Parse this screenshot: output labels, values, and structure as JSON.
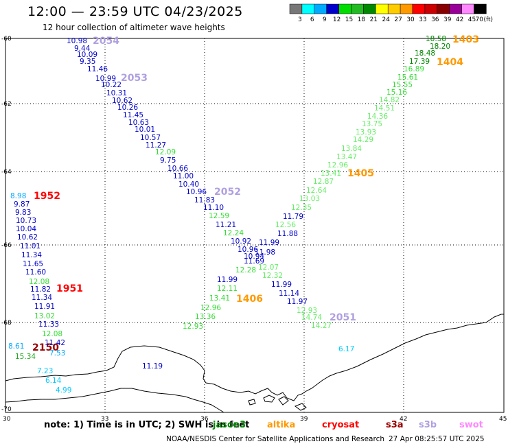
{
  "header": {
    "title": "12:00 — 23:59 UTC 04/23/2025",
    "subtitle": "12 hour collection of altimeter wave heights"
  },
  "legend": {
    "unit": "(ft)",
    "bins": [
      {
        "label": "3",
        "color": "#777777"
      },
      {
        "label": "6",
        "color": "#00ffff"
      },
      {
        "label": "9",
        "color": "#00aaff"
      },
      {
        "label": "12",
        "color": "#0000cc"
      },
      {
        "label": "15",
        "color": "#00dd00"
      },
      {
        "label": "18",
        "color": "#22bb22"
      },
      {
        "label": "21",
        "color": "#008800"
      },
      {
        "label": "24",
        "color": "#ffff00"
      },
      {
        "label": "27",
        "color": "#ffcc00"
      },
      {
        "label": "30",
        "color": "#ff9900"
      },
      {
        "label": "33",
        "color": "#ff0000"
      },
      {
        "label": "36",
        "color": "#cc0000"
      },
      {
        "label": "39",
        "color": "#880000"
      },
      {
        "label": "42",
        "color": "#990099"
      },
      {
        "label": "45",
        "color": "#ff88ff"
      },
      {
        "label": "70",
        "color": "#000000"
      }
    ]
  },
  "map": {
    "lat_labels": [
      "-60",
      "-62",
      "-64",
      "-66",
      "-68",
      "-70"
    ],
    "lon_labels": [
      "30",
      "33",
      "36",
      "39",
      "42",
      "45"
    ],
    "lat_range": [
      -70,
      -60
    ],
    "lon_range": [
      30,
      45
    ]
  },
  "passes": [
    {
      "label": "2054",
      "satellite": "s3b",
      "color": "#b0a0e0"
    },
    {
      "label": "2053",
      "satellite": "s3b",
      "color": "#b0a0e0"
    },
    {
      "label": "2052",
      "satellite": "s3b",
      "color": "#b0a0e0"
    },
    {
      "label": "2051",
      "satellite": "s3b",
      "color": "#b0a0e0"
    },
    {
      "label": "1403",
      "satellite": "altika",
      "color": "#ff9900"
    },
    {
      "label": "1404",
      "satellite": "altika",
      "color": "#ff9900"
    },
    {
      "label": "1405",
      "satellite": "altika",
      "color": "#ff9900"
    },
    {
      "label": "1406",
      "satellite": "altika",
      "color": "#ff9900"
    },
    {
      "label": "1952",
      "satellite": "cryosat",
      "color": "#ff0000"
    },
    {
      "label": "1951",
      "satellite": "cryosat",
      "color": "#ff0000"
    },
    {
      "label": "2150",
      "satellite": "s3a",
      "color": "#990000"
    }
  ],
  "observations": [
    {
      "value": "10.98",
      "color": "#0000cc"
    },
    {
      "value": "9.44",
      "color": "#0000cc"
    },
    {
      "value": "10.09",
      "color": "#0000cc"
    },
    {
      "value": "9.35",
      "color": "#0000cc"
    },
    {
      "value": "11.46",
      "color": "#0000cc"
    },
    {
      "value": "10.99",
      "color": "#0000cc"
    },
    {
      "value": "10.22",
      "color": "#0000cc"
    },
    {
      "value": "10.31",
      "color": "#0000cc"
    },
    {
      "value": "10.62",
      "color": "#0000cc"
    },
    {
      "value": "10.26",
      "color": "#0000cc"
    },
    {
      "value": "11.45",
      "color": "#0000cc"
    },
    {
      "value": "10.63",
      "color": "#0000cc"
    },
    {
      "value": "10.01",
      "color": "#0000cc"
    },
    {
      "value": "10.57",
      "color": "#0000cc"
    },
    {
      "value": "11.27",
      "color": "#0000cc"
    },
    {
      "value": "12.09",
      "color": "#33dd33"
    },
    {
      "value": "9.75",
      "color": "#0000cc"
    },
    {
      "value": "10.66",
      "color": "#0000cc"
    },
    {
      "value": "11.00",
      "color": "#0000cc"
    },
    {
      "value": "10.40",
      "color": "#0000cc"
    },
    {
      "value": "10.96",
      "color": "#0000cc"
    },
    {
      "value": "11.83",
      "color": "#0000cc"
    },
    {
      "value": "11.10",
      "color": "#0000cc"
    },
    {
      "value": "12.59",
      "color": "#33dd33"
    },
    {
      "value": "11.21",
      "color": "#0000cc"
    },
    {
      "value": "12.24",
      "color": "#33dd33"
    },
    {
      "value": "10.92",
      "color": "#0000cc"
    },
    {
      "value": "10.96",
      "color": "#0000cc"
    },
    {
      "value": "10.94",
      "color": "#0000cc"
    },
    {
      "value": "11.69",
      "color": "#0000cc"
    },
    {
      "value": "12.28",
      "color": "#33dd33"
    },
    {
      "value": "11.99",
      "color": "#0000cc"
    },
    {
      "value": "12.11",
      "color": "#33dd33"
    },
    {
      "value": "13.41",
      "color": "#33dd33"
    },
    {
      "value": "12.96",
      "color": "#33dd33"
    },
    {
      "value": "13.36",
      "color": "#33dd33"
    },
    {
      "value": "12.93",
      "color": "#33dd33"
    },
    {
      "value": "18.58",
      "color": "#008800"
    },
    {
      "value": "18.20",
      "color": "#008800"
    },
    {
      "value": "18.48",
      "color": "#008800"
    },
    {
      "value": "17.39",
      "color": "#008800"
    },
    {
      "value": "16.89",
      "color": "#33dd33"
    },
    {
      "value": "15.61",
      "color": "#33dd33"
    },
    {
      "value": "15.55",
      "color": "#33dd33"
    },
    {
      "value": "15.16",
      "color": "#33dd33"
    },
    {
      "value": "14.82",
      "color": "#66ee66"
    },
    {
      "value": "14.51",
      "color": "#66ee66"
    },
    {
      "value": "14.36",
      "color": "#66ee66"
    },
    {
      "value": "13.75",
      "color": "#66ee66"
    },
    {
      "value": "13.93",
      "color": "#66ee66"
    },
    {
      "value": "14.29",
      "color": "#66ee66"
    },
    {
      "value": "13.84",
      "color": "#66ee66"
    },
    {
      "value": "13.47",
      "color": "#66ee66"
    },
    {
      "value": "12.96",
      "color": "#66ee66"
    },
    {
      "value": "13.41",
      "color": "#66ee66"
    },
    {
      "value": "12.87",
      "color": "#66ee66"
    },
    {
      "value": "12.64",
      "color": "#66ee66"
    },
    {
      "value": "13.03",
      "color": "#66ee66"
    },
    {
      "value": "12.35",
      "color": "#66ee66"
    },
    {
      "value": "11.79",
      "color": "#0000cc"
    },
    {
      "value": "12.56",
      "color": "#66ee66"
    },
    {
      "value": "11.88",
      "color": "#0000cc"
    },
    {
      "value": "11.99",
      "color": "#0000cc"
    },
    {
      "value": "11.98",
      "color": "#0000cc"
    },
    {
      "value": "12.07",
      "color": "#66ee66"
    },
    {
      "value": "12.32",
      "color": "#66ee66"
    },
    {
      "value": "11.99",
      "color": "#0000cc"
    },
    {
      "value": "11.14",
      "color": "#0000cc"
    },
    {
      "value": "11.97",
      "color": "#0000cc"
    },
    {
      "value": "12.93",
      "color": "#66ee66"
    },
    {
      "value": "14.74",
      "color": "#66ee66"
    },
    {
      "value": "14.27",
      "color": "#66ee66"
    },
    {
      "value": "8.98",
      "color": "#00aaff"
    },
    {
      "value": "9.87",
      "color": "#0000cc"
    },
    {
      "value": "9.83",
      "color": "#0000cc"
    },
    {
      "value": "10.73",
      "color": "#0000cc"
    },
    {
      "value": "10.04",
      "color": "#0000cc"
    },
    {
      "value": "10.62",
      "color": "#0000cc"
    },
    {
      "value": "11.01",
      "color": "#0000cc"
    },
    {
      "value": "11.34",
      "color": "#0000cc"
    },
    {
      "value": "11.65",
      "color": "#0000cc"
    },
    {
      "value": "11.60",
      "color": "#0000cc"
    },
    {
      "value": "12.08",
      "color": "#33dd33"
    },
    {
      "value": "11.82",
      "color": "#0000cc"
    },
    {
      "value": "11.34",
      "color": "#0000cc"
    },
    {
      "value": "11.91",
      "color": "#0000cc"
    },
    {
      "value": "13.02",
      "color": "#33dd33"
    },
    {
      "value": "11.33",
      "color": "#0000cc"
    },
    {
      "value": "12.08",
      "color": "#33dd33"
    },
    {
      "value": "11.42",
      "color": "#0000cc"
    },
    {
      "value": "8.61",
      "color": "#00aaff"
    },
    {
      "value": "15.34",
      "color": "#22aa22"
    },
    {
      "value": "7.53",
      "color": "#00aaff"
    },
    {
      "value": "7.23",
      "color": "#00ccff"
    },
    {
      "value": "6.14",
      "color": "#00ccff"
    },
    {
      "value": "4.99",
      "color": "#00ccff"
    },
    {
      "value": "11.19",
      "color": "#0000cc"
    },
    {
      "value": "6.17",
      "color": "#00ccff"
    }
  ],
  "footer": {
    "note": "note:  1) Time is in UTC;  2) SWH is in feet",
    "satellites": [
      {
        "name": "jason3",
        "color": "#008800"
      },
      {
        "name": "altika",
        "color": "#ff9900"
      },
      {
        "name": "cryosat",
        "color": "#ff0000"
      },
      {
        "name": "s3a",
        "color": "#990000"
      },
      {
        "name": "s3b",
        "color": "#b0a0e0"
      },
      {
        "name": "swot",
        "color": "#ff88ff"
      }
    ],
    "credit": "NOAA/NESDIS Center for Satellite Applications and Research",
    "timestamp": "27 Apr 08:25:57 UTC 2025"
  }
}
